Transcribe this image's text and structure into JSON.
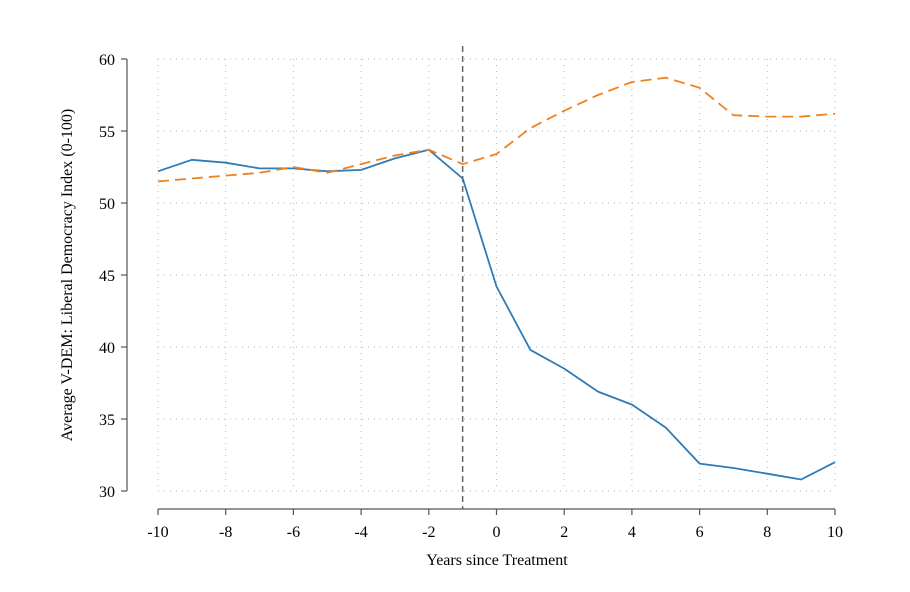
{
  "chart_data": {
    "type": "line",
    "title": "",
    "xlabel": "Years since Treatment",
    "ylabel": "Average V-DEM: Liberal Democracy Index (0-100)",
    "x": [
      -10,
      -9,
      -8,
      -7,
      -6,
      -5,
      -4,
      -3,
      -2,
      -1,
      0,
      1,
      2,
      3,
      4,
      5,
      6,
      7,
      8,
      9,
      10
    ],
    "xlim": [
      -10,
      10
    ],
    "ylim": [
      30,
      60
    ],
    "xticks": [
      -10,
      -8,
      -6,
      -4,
      -2,
      0,
      2,
      4,
      6,
      8,
      10
    ],
    "yticks": [
      30,
      35,
      40,
      45,
      50,
      55,
      60
    ],
    "grid": true,
    "legend": "none",
    "reference_line_x": -1,
    "series": [
      {
        "style": "solid",
        "color": "#2e7bb6",
        "values": [
          52.2,
          53.0,
          52.8,
          52.4,
          52.4,
          52.2,
          52.3,
          53.1,
          53.7,
          51.7,
          44.2,
          39.8,
          38.5,
          36.9,
          36.0,
          34.4,
          31.9,
          31.6,
          31.2,
          30.8,
          32.0
        ]
      },
      {
        "style": "dashed",
        "color": "#f0821e",
        "values": [
          51.5,
          51.7,
          51.9,
          52.1,
          52.5,
          52.1,
          52.7,
          53.3,
          53.7,
          52.7,
          53.4,
          55.2,
          56.4,
          57.5,
          58.4,
          58.7,
          58.0,
          56.1,
          56.0,
          56.0,
          56.2
        ]
      }
    ]
  }
}
